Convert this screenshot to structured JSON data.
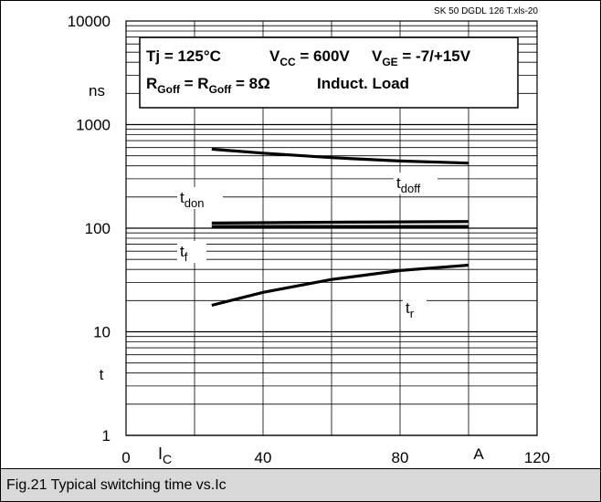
{
  "source_tag": "SK 50 DGDL 126 T.xls-20",
  "conditions": {
    "line1": [
      {
        "t": "Tj = 125°C"
      },
      {
        "t": "V"
      },
      {
        "t": "CC",
        "sub": true
      },
      {
        "t": " = 600V"
      },
      {
        "t": "V"
      },
      {
        "t": "GE",
        "sub": true
      },
      {
        "t": " = -7/+15V"
      }
    ],
    "line2": [
      {
        "t": "R"
      },
      {
        "t": "Goff",
        "sub": true
      },
      {
        "t": " = R"
      },
      {
        "t": "Goff",
        "sub": true
      },
      {
        "t": " = 8Ω"
      },
      {
        "t": "Induct. Load"
      }
    ]
  },
  "caption": "Fig.21 Typical switching time vs.Ic",
  "chart_data": {
    "type": "line",
    "title": "",
    "xlabel": "I",
    "xlabel_sub": "C",
    "xunit": "A",
    "ylabel_unit": "ns",
    "ylabel_symbol": "t",
    "x_scale": "linear",
    "y_scale": "log",
    "xlim": [
      0,
      120
    ],
    "ylim": [
      1,
      10000
    ],
    "x_ticks": [
      "0",
      "40",
      "80",
      "120"
    ],
    "y_ticks": [
      "1",
      "10",
      "100",
      "1000",
      "10000"
    ],
    "grid": true,
    "series": [
      {
        "name": "tdoff",
        "label_main": "t",
        "label_sub": "doff",
        "x": [
          25,
          40,
          60,
          80,
          100
        ],
        "y": [
          580,
          530,
          480,
          445,
          425
        ]
      },
      {
        "name": "tdon",
        "label_main": "t",
        "label_sub": "don",
        "x": [
          25,
          40,
          60,
          80,
          100
        ],
        "y": [
          112,
          113,
          114,
          115,
          116
        ]
      },
      {
        "name": "tf",
        "label_main": "t",
        "label_sub": "f",
        "x": [
          25,
          40,
          60,
          80,
          100
        ],
        "y": [
          104,
          104,
          104,
          104,
          104
        ]
      },
      {
        "name": "tr",
        "label_main": "t",
        "label_sub": "r",
        "x": [
          25,
          40,
          60,
          80,
          100
        ],
        "y": [
          18,
          24,
          32,
          39,
          44
        ]
      }
    ]
  }
}
